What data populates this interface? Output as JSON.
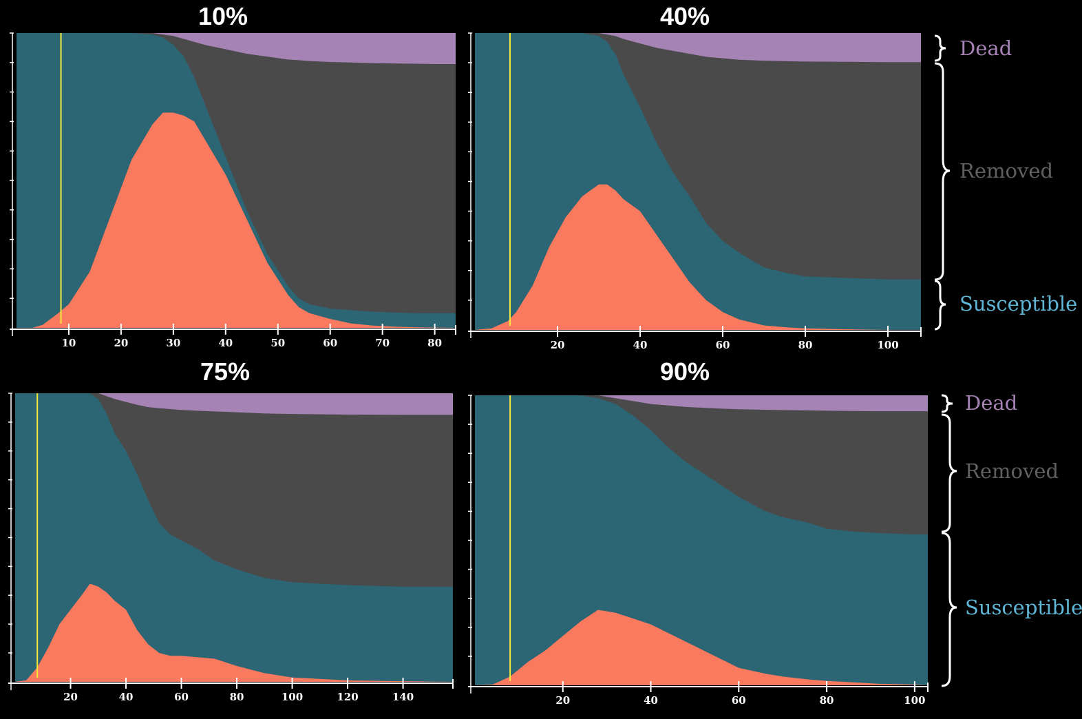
{
  "colors": {
    "background": "#000000",
    "susceptible": "#2c6574",
    "infected": "#f97a5e",
    "removed": "#4a4a4a",
    "dead": "#a683b5",
    "threshold_line": "#f5ea3a",
    "axis": "#ffffff",
    "label_dead": "#a683b5",
    "label_removed": "#606060",
    "label_susceptible": "#5fb6d6"
  },
  "legend": {
    "dead": "Dead",
    "removed": "Removed",
    "susceptible": "Susceptible"
  },
  "chart_data": [
    {
      "type": "area",
      "title": "10%",
      "xlabel": "",
      "ylabel": "",
      "xlim": [
        0,
        84
      ],
      "ylim": [
        0,
        1
      ],
      "xticks": [
        10,
        20,
        30,
        40,
        50,
        60,
        70,
        80
      ],
      "yticks_count": 10,
      "threshold_x": 8.5,
      "series_order_bottom_to_top": [
        "infected",
        "susceptible",
        "removed",
        "dead"
      ],
      "x": [
        0,
        3,
        5,
        8,
        10,
        14,
        18,
        22,
        26,
        28,
        30,
        32,
        34,
        36,
        40,
        44,
        48,
        52,
        54,
        56,
        60,
        64,
        68,
        72,
        76,
        80,
        84
      ],
      "infected": [
        0,
        0,
        0.01,
        0.05,
        0.08,
        0.19,
        0.38,
        0.57,
        0.69,
        0.73,
        0.73,
        0.72,
        0.7,
        0.64,
        0.52,
        0.37,
        0.22,
        0.11,
        0.07,
        0.05,
        0.03,
        0.015,
        0.008,
        0.004,
        0.002,
        0.001,
        0
      ],
      "susceptible_top": [
        1,
        1,
        1,
        1,
        1,
        1,
        1,
        1,
        0.995,
        0.985,
        0.96,
        0.92,
        0.85,
        0.76,
        0.58,
        0.4,
        0.25,
        0.14,
        0.1,
        0.08,
        0.065,
        0.06,
        0.055,
        0.052,
        0.05,
        0.05,
        0.05
      ],
      "dead_band": [
        0,
        0,
        0,
        0,
        0,
        0,
        0,
        0,
        0,
        0.005,
        0.01,
        0.02,
        0.03,
        0.04,
        0.055,
        0.07,
        0.08,
        0.09,
        0.092,
        0.095,
        0.098,
        0.1,
        0.102,
        0.103,
        0.104,
        0.105,
        0.105
      ]
    },
    {
      "type": "area",
      "title": "40%",
      "xlabel": "",
      "ylabel": "",
      "xlim": [
        0,
        108
      ],
      "ylim": [
        0,
        1
      ],
      "xticks": [
        20,
        40,
        60,
        80,
        100
      ],
      "yticks_count": 10,
      "threshold_x": 8.5,
      "series_order_bottom_to_top": [
        "infected",
        "susceptible",
        "removed",
        "dead"
      ],
      "x": [
        0,
        4,
        8,
        10,
        14,
        18,
        22,
        26,
        30,
        32,
        34,
        36,
        40,
        44,
        48,
        52,
        56,
        60,
        64,
        70,
        76,
        80,
        90,
        100,
        108
      ],
      "infected": [
        0,
        0.005,
        0.03,
        0.06,
        0.15,
        0.28,
        0.38,
        0.45,
        0.49,
        0.49,
        0.47,
        0.44,
        0.4,
        0.32,
        0.24,
        0.16,
        0.1,
        0.06,
        0.035,
        0.015,
        0.008,
        0.005,
        0.002,
        0,
        0
      ],
      "susceptible_top": [
        1,
        1,
        1,
        1,
        1,
        1,
        1,
        1,
        0.99,
        0.97,
        0.93,
        0.86,
        0.75,
        0.63,
        0.53,
        0.45,
        0.36,
        0.3,
        0.26,
        0.21,
        0.19,
        0.18,
        0.175,
        0.17,
        0.17
      ],
      "dead_band": [
        0,
        0,
        0,
        0,
        0,
        0,
        0,
        0,
        0,
        0.005,
        0.01,
        0.02,
        0.035,
        0.05,
        0.06,
        0.07,
        0.08,
        0.085,
        0.09,
        0.093,
        0.095,
        0.096,
        0.097,
        0.098,
        0.098
      ]
    },
    {
      "type": "area",
      "title": "75%",
      "xlabel": "",
      "ylabel": "",
      "xlim": [
        0,
        158
      ],
      "ylim": [
        0,
        1
      ],
      "xticks": [
        20,
        40,
        60,
        80,
        100,
        120,
        140
      ],
      "yticks_count": 10,
      "threshold_x": 8,
      "series_order_bottom_to_top": [
        "infected",
        "susceptible",
        "removed",
        "dead"
      ],
      "x": [
        0,
        4,
        8,
        12,
        16,
        20,
        24,
        27,
        30,
        33,
        36,
        40,
        44,
        48,
        52,
        56,
        60,
        66,
        72,
        80,
        90,
        100,
        120,
        140,
        158
      ],
      "infected": [
        0,
        0.005,
        0.05,
        0.12,
        0.2,
        0.25,
        0.3,
        0.34,
        0.33,
        0.31,
        0.28,
        0.25,
        0.18,
        0.13,
        0.1,
        0.09,
        0.09,
        0.085,
        0.08,
        0.055,
        0.03,
        0.015,
        0.005,
        0.002,
        0
      ],
      "susceptible_top": [
        1,
        1,
        1,
        1,
        1,
        1,
        1,
        1,
        0.98,
        0.93,
        0.86,
        0.8,
        0.72,
        0.63,
        0.55,
        0.51,
        0.49,
        0.46,
        0.42,
        0.39,
        0.36,
        0.345,
        0.335,
        0.33,
        0.33
      ],
      "dead_band": [
        0,
        0,
        0,
        0,
        0,
        0,
        0,
        0,
        0,
        0.01,
        0.02,
        0.03,
        0.04,
        0.048,
        0.052,
        0.055,
        0.058,
        0.061,
        0.063,
        0.066,
        0.07,
        0.072,
        0.074,
        0.075,
        0.075
      ]
    },
    {
      "type": "area",
      "title": "90%",
      "xlabel": "",
      "ylabel": "",
      "xlim": [
        0,
        103
      ],
      "ylim": [
        0,
        1
      ],
      "xticks": [
        20,
        40,
        60,
        80,
        100
      ],
      "yticks_count": 10,
      "threshold_x": 8,
      "series_order_bottom_to_top": [
        "infected",
        "susceptible",
        "removed",
        "dead"
      ],
      "x": [
        0,
        4,
        8,
        12,
        16,
        20,
        24,
        28,
        32,
        36,
        40,
        44,
        48,
        52,
        56,
        60,
        66,
        70,
        76,
        80,
        86,
        92,
        100,
        103
      ],
      "infected": [
        0,
        0.002,
        0.03,
        0.08,
        0.12,
        0.17,
        0.22,
        0.26,
        0.25,
        0.23,
        0.21,
        0.18,
        0.15,
        0.12,
        0.09,
        0.06,
        0.04,
        0.03,
        0.02,
        0.015,
        0.01,
        0.005,
        0.002,
        0
      ],
      "susceptible_top": [
        1,
        1,
        1,
        1,
        1,
        1,
        1,
        0.99,
        0.97,
        0.93,
        0.88,
        0.82,
        0.77,
        0.73,
        0.69,
        0.65,
        0.6,
        0.58,
        0.56,
        0.54,
        0.53,
        0.525,
        0.52,
        0.52
      ],
      "dead_band": [
        0,
        0,
        0,
        0,
        0,
        0,
        0,
        0,
        0.01,
        0.02,
        0.03,
        0.035,
        0.04,
        0.043,
        0.046,
        0.048,
        0.05,
        0.051,
        0.052,
        0.053,
        0.054,
        0.055,
        0.055,
        0.055
      ]
    }
  ]
}
